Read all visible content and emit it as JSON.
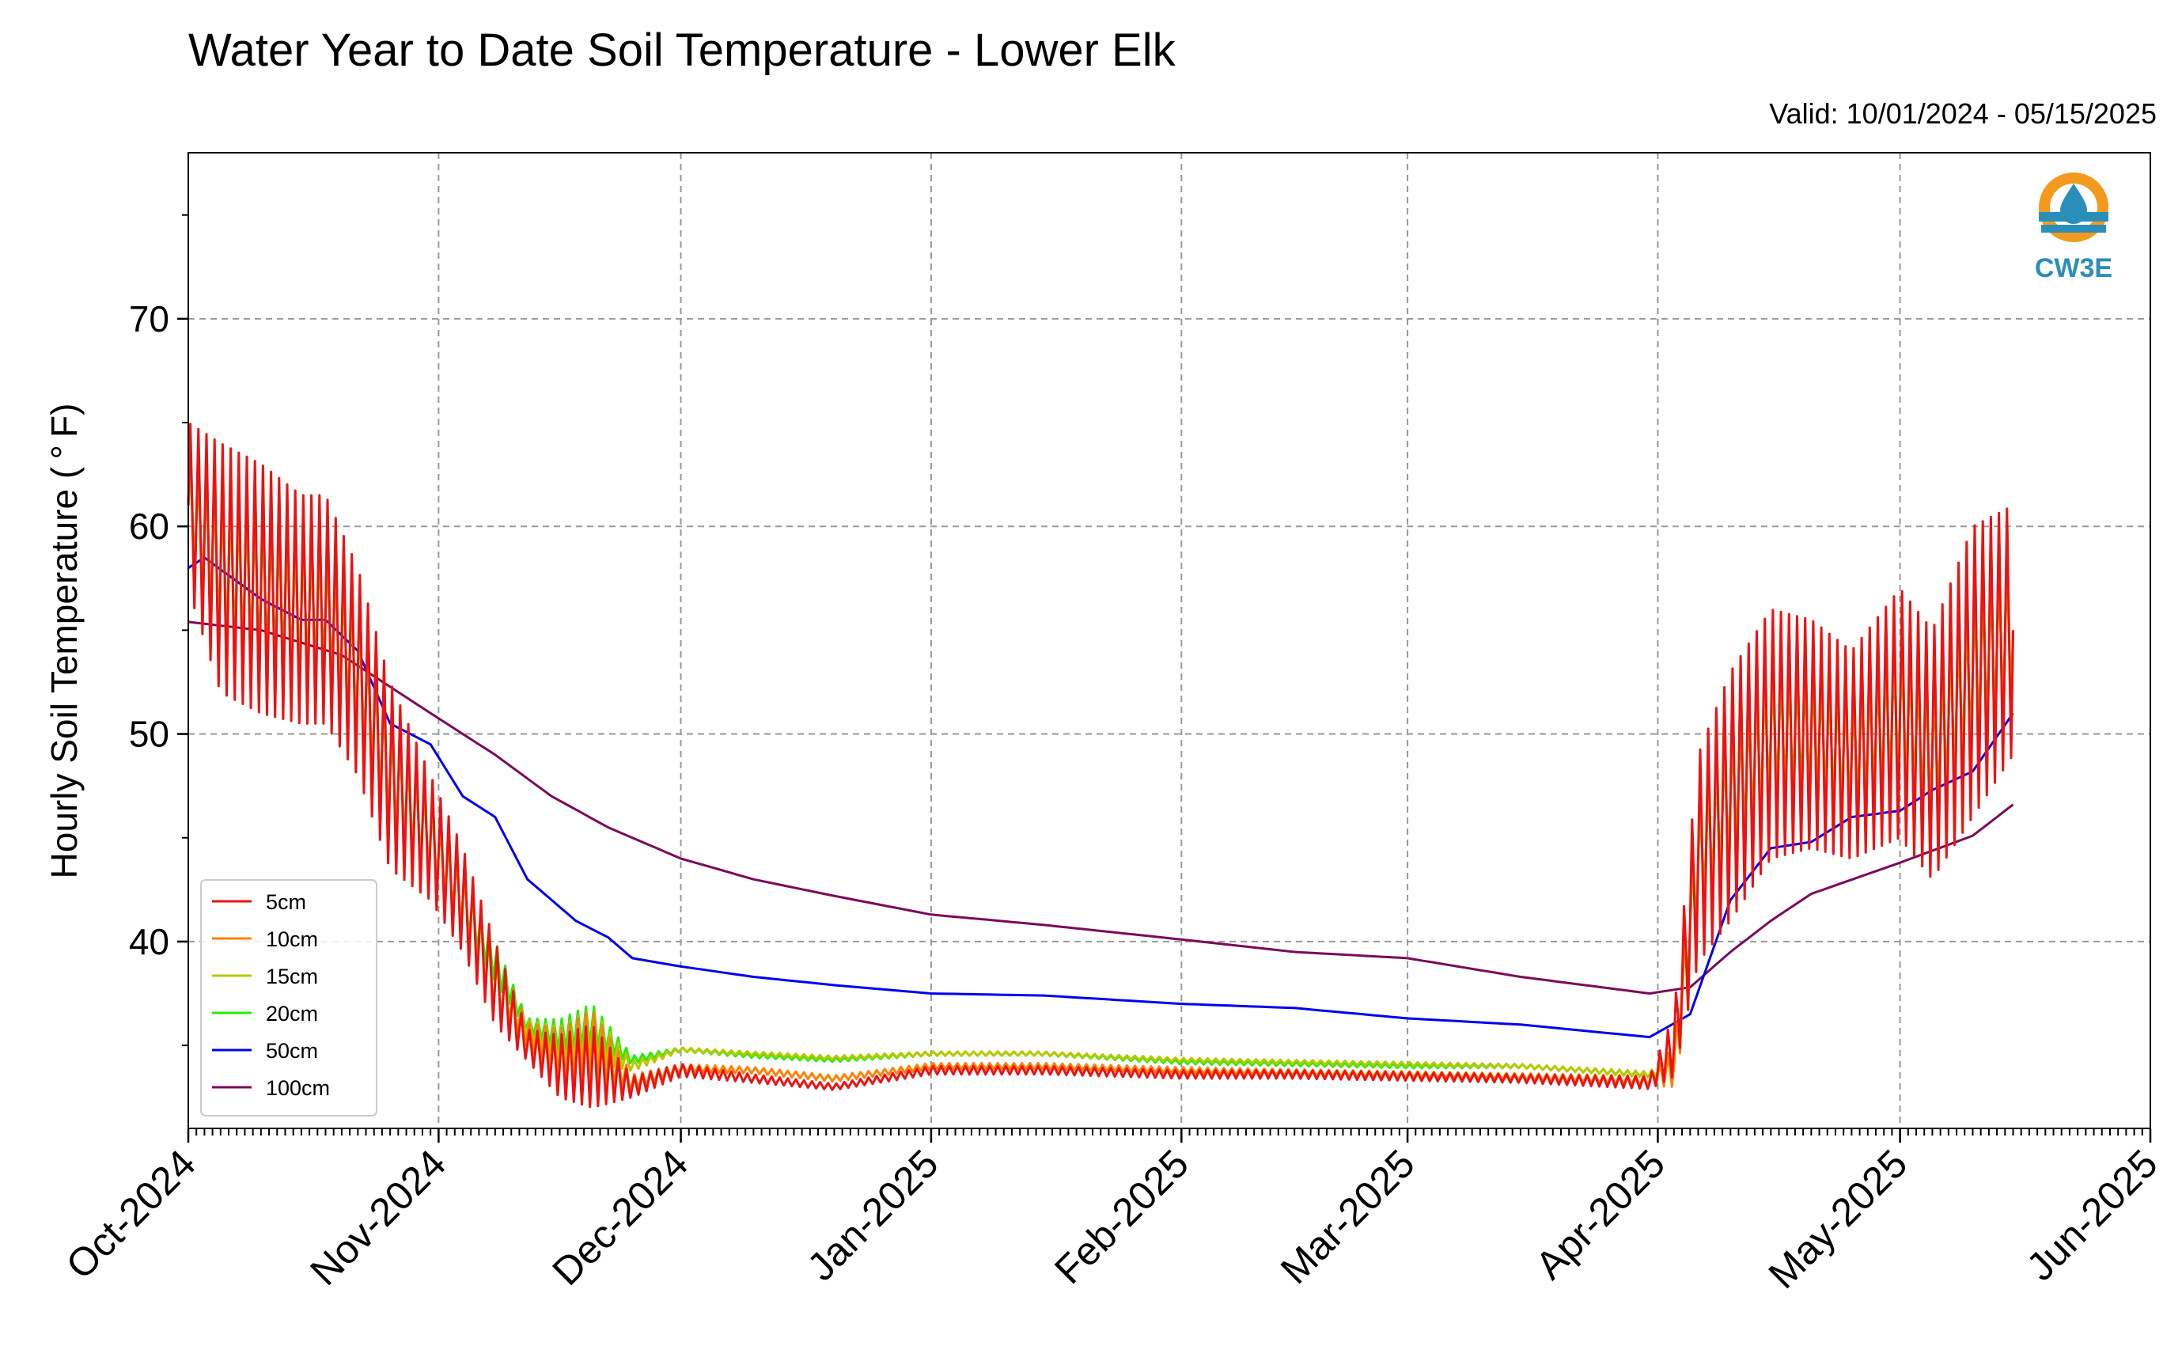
{
  "title": "Water Year to Date Soil Temperature - Lower Elk",
  "valid_label": "Valid: 10/01/2024 - 05/15/2025",
  "logo_text": "CW3E",
  "colors": {
    "5cm": "#ee1111",
    "10cm": "#ff8000",
    "15cm": "#b8c800",
    "20cm": "#22ee00",
    "50cm": "#0000ee",
    "100cm": "#7a0a5a",
    "logo_orange": "#f39a1e",
    "logo_blue": "#2a8fb8"
  },
  "chart_data": {
    "type": "line",
    "title": "Water Year to Date Soil Temperature - Lower Elk",
    "xlabel": "",
    "ylabel": "Hourly Soil Temperature ( $^\\circ$F)",
    "ylabel_display": "Hourly Soil Temperature ( ° F)",
    "x_axis": "date",
    "xlim": [
      "2024-10-01",
      "2025-06-01"
    ],
    "ylim": [
      31,
      78
    ],
    "x_ticks": [
      "Oct-2024",
      "Nov-2024",
      "Dec-2024",
      "Jan-2025",
      "Feb-2025",
      "Mar-2025",
      "Apr-2025",
      "May-2025",
      "Jun-2025"
    ],
    "y_ticks": [
      40,
      50,
      60,
      70
    ],
    "grid": true,
    "legend_location": "lower left",
    "series": [
      {
        "name": "5cm",
        "x": [
          "2024-10-01",
          "2024-10-05",
          "2024-10-10",
          "2024-10-15",
          "2024-10-18",
          "2024-10-22",
          "2024-10-26",
          "2024-10-31",
          "2024-11-04",
          "2024-11-08",
          "2024-11-12",
          "2024-11-16",
          "2024-11-20",
          "2024-11-25",
          "2024-12-01",
          "2024-12-10",
          "2024-12-20",
          "2025-01-01",
          "2025-01-15",
          "2025-02-01",
          "2025-02-15",
          "2025-03-01",
          "2025-03-15",
          "2025-03-31",
          "2025-04-03",
          "2025-04-06",
          "2025-04-10",
          "2025-04-15",
          "2025-04-20",
          "2025-04-25",
          "2025-05-01",
          "2025-05-05",
          "2025-05-10",
          "2025-05-15"
        ],
        "y": [
          61,
          58,
          57,
          56,
          56,
          53,
          48,
          45,
          42,
          38,
          35,
          34,
          34,
          33,
          33.8,
          33.4,
          33,
          33.8,
          33.8,
          33.6,
          33.6,
          33.5,
          33.4,
          33.2,
          35,
          44,
          47,
          50,
          50,
          49,
          51,
          49,
          53,
          55
        ],
        "daily_range": [
          8,
          12,
          12,
          11,
          11,
          10,
          9,
          6,
          5,
          4,
          1.5,
          3,
          4,
          1,
          0.6,
          0.4,
          0.3,
          0.4,
          0.4,
          0.4,
          0.4,
          0.4,
          0.4,
          0.6,
          3,
          10,
          12,
          12,
          11,
          10,
          12,
          12,
          14,
          12
        ]
      },
      {
        "name": "10cm",
        "x": [
          "2024-10-01",
          "2024-10-05",
          "2024-10-10",
          "2024-10-15",
          "2024-10-18",
          "2024-10-22",
          "2024-10-26",
          "2024-10-31",
          "2024-11-04",
          "2024-11-08",
          "2024-11-12",
          "2024-11-16",
          "2024-11-20",
          "2024-11-25",
          "2024-12-01",
          "2024-12-10",
          "2024-12-20",
          "2025-01-01",
          "2025-01-15",
          "2025-02-01",
          "2025-02-15",
          "2025-03-01",
          "2025-03-15",
          "2025-03-31",
          "2025-04-03",
          "2025-04-06",
          "2025-04-10",
          "2025-04-15",
          "2025-04-20",
          "2025-04-25",
          "2025-05-01",
          "2025-05-05",
          "2025-05-10",
          "2025-05-15"
        ],
        "y": [
          61,
          58,
          57,
          56,
          56,
          53,
          48,
          45,
          42,
          38,
          35.5,
          34.5,
          35,
          33.2,
          33.9,
          33.8,
          33.4,
          34,
          34,
          33.8,
          33.7,
          33.6,
          33.5,
          33.3,
          34,
          44,
          47,
          50,
          50,
          49,
          51,
          49,
          53,
          55
        ],
        "daily_range": [
          7,
          11,
          11,
          10,
          10,
          9,
          8,
          5,
          4.5,
          3.5,
          1.2,
          2.5,
          3.5,
          0.8,
          0.4,
          0.3,
          0.3,
          0.3,
          0.3,
          0.3,
          0.3,
          0.3,
          0.3,
          0.5,
          2,
          9,
          11,
          11,
          10,
          9,
          11,
          11,
          13,
          11
        ]
      },
      {
        "name": "15cm",
        "x": [
          "2024-10-01",
          "2024-10-05",
          "2024-10-10",
          "2024-10-15",
          "2024-10-18",
          "2024-10-22",
          "2024-10-26",
          "2024-10-31",
          "2024-11-04",
          "2024-11-08",
          "2024-11-12",
          "2024-11-16",
          "2024-11-20",
          "2024-11-25",
          "2024-12-01",
          "2024-12-10",
          "2024-12-20",
          "2025-01-01",
          "2025-01-15",
          "2025-02-01",
          "2025-02-15",
          "2025-03-01",
          "2025-03-15",
          "2025-03-31",
          "2025-04-03",
          "2025-04-06",
          "2025-04-10",
          "2025-04-15",
          "2025-04-20",
          "2025-04-25",
          "2025-05-01",
          "2025-05-05",
          "2025-05-10",
          "2025-05-15"
        ],
        "y": [
          61,
          58,
          57,
          56,
          56,
          53,
          48,
          45,
          42,
          38,
          35.8,
          35,
          35.5,
          34,
          34.8,
          34.6,
          34.4,
          34.6,
          34.6,
          34.3,
          34.2,
          34.1,
          34,
          33.6,
          34,
          44,
          47,
          50,
          50,
          49,
          51,
          49,
          53,
          55
        ],
        "daily_range": [
          5,
          8,
          8,
          7,
          7,
          6,
          5.5,
          4,
          3.5,
          2.5,
          0.8,
          1.8,
          2.5,
          0.5,
          0.2,
          0.2,
          0.2,
          0.2,
          0.2,
          0.2,
          0.2,
          0.2,
          0.2,
          0.3,
          1.5,
          6,
          7,
          7,
          7,
          6,
          7,
          7,
          9,
          8
        ]
      },
      {
        "name": "20cm",
        "x": [
          "2024-10-01",
          "2024-10-05",
          "2024-10-10",
          "2024-10-15",
          "2024-10-18",
          "2024-10-22",
          "2024-10-26",
          "2024-10-31",
          "2024-11-04",
          "2024-11-08",
          "2024-11-12",
          "2024-11-16",
          "2024-11-20",
          "2024-11-25",
          "2024-12-01",
          "2024-12-10",
          "2024-12-20",
          "2025-01-01",
          "2025-01-15",
          "2025-02-01",
          "2025-02-15",
          "2025-03-01",
          "2025-03-15",
          "2025-03-31",
          "2025-04-03",
          "2025-04-06",
          "2025-04-10",
          "2025-04-15",
          "2025-04-20",
          "2025-04-25",
          "2025-05-01",
          "2025-05-05",
          "2025-05-10",
          "2025-05-15"
        ],
        "y": [
          61,
          58,
          57,
          56,
          56,
          53,
          48,
          45,
          42,
          39,
          36,
          35.5,
          36,
          34.3,
          34.8,
          34.5,
          34.3,
          34.6,
          34.6,
          34.2,
          34.1,
          34,
          34,
          33.6,
          34,
          44,
          47,
          50,
          50,
          49,
          51,
          49,
          53,
          55
        ],
        "daily_range": [
          4,
          6,
          6,
          5,
          5,
          4.5,
          4,
          3,
          2.5,
          2,
          0.6,
          1.5,
          2,
          0.4,
          0.2,
          0.2,
          0.2,
          0.2,
          0.2,
          0.2,
          0.2,
          0.2,
          0.2,
          0.2,
          1,
          4,
          5,
          5,
          5,
          4.5,
          5,
          5,
          6,
          6
        ]
      },
      {
        "name": "50cm",
        "x": [
          "2024-10-01",
          "2024-10-03",
          "2024-10-10",
          "2024-10-15",
          "2024-10-18",
          "2024-10-22",
          "2024-10-26",
          "2024-10-31",
          "2024-11-04",
          "2024-11-08",
          "2024-11-12",
          "2024-11-18",
          "2024-11-22",
          "2024-11-25",
          "2024-12-01",
          "2024-12-10",
          "2024-12-20",
          "2025-01-01",
          "2025-01-15",
          "2025-02-01",
          "2025-02-15",
          "2025-03-01",
          "2025-03-15",
          "2025-03-31",
          "2025-04-05",
          "2025-04-10",
          "2025-04-15",
          "2025-04-20",
          "2025-04-25",
          "2025-05-01",
          "2025-05-05",
          "2025-05-10",
          "2025-05-15"
        ],
        "y": [
          58,
          58.5,
          56.5,
          55.5,
          55.5,
          54,
          50.5,
          49.5,
          47,
          46,
          43,
          41,
          40.2,
          39.2,
          38.8,
          38.3,
          37.9,
          37.5,
          37.4,
          37,
          36.8,
          36.3,
          36,
          35.4,
          36.5,
          42,
          44.5,
          44.8,
          46,
          46.3,
          47.3,
          48.2,
          51
        ]
      },
      {
        "name": "100cm",
        "x": [
          "2024-10-01",
          "2024-10-10",
          "2024-10-20",
          "2024-10-31",
          "2024-11-08",
          "2024-11-15",
          "2024-11-22",
          "2024-12-01",
          "2024-12-10",
          "2024-12-20",
          "2025-01-01",
          "2025-01-15",
          "2025-02-01",
          "2025-02-15",
          "2025-03-01",
          "2025-03-15",
          "2025-03-31",
          "2025-04-05",
          "2025-04-10",
          "2025-04-15",
          "2025-04-20",
          "2025-05-01",
          "2025-05-10",
          "2025-05-15"
        ],
        "y": [
          55.4,
          55,
          53.8,
          51,
          49,
          47,
          45.5,
          44,
          43,
          42.2,
          41.3,
          40.8,
          40.1,
          39.5,
          39.2,
          38.3,
          37.5,
          37.8,
          39.5,
          41,
          42.3,
          43.8,
          45.1,
          46.6
        ]
      }
    ]
  }
}
